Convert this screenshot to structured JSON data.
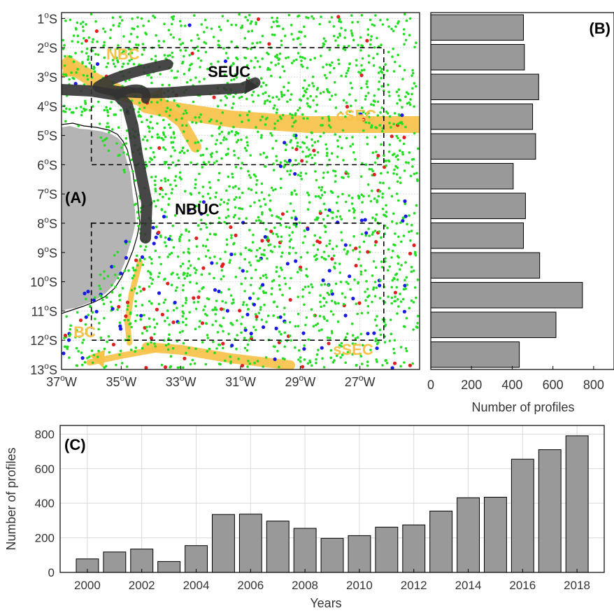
{
  "colors": {
    "land": "#b4b4b4",
    "bar": "#999999",
    "current_surface": "#f8c24a",
    "current_subsurface": "#333333",
    "points_green": "#22dd22",
    "points_red": "#e02020",
    "points_blue": "#1a1ae6",
    "grid": "#d9d9d9"
  },
  "chart_data": [
    {
      "panel_label": "(A)",
      "type": "scatter",
      "xlim": [
        -37,
        -25
      ],
      "ylim": [
        -13,
        -0.8
      ],
      "x_ticks": [
        {
          "v": -37,
          "label": "37",
          "sup": "o",
          "suf": "W"
        },
        {
          "v": -35,
          "label": "35",
          "sup": "o",
          "suf": "W"
        },
        {
          "v": -33,
          "label": "33",
          "sup": "o",
          "suf": "W"
        },
        {
          "v": -31,
          "label": "31",
          "sup": "o",
          "suf": "W"
        },
        {
          "v": -29,
          "label": "29",
          "sup": "o",
          "suf": "W"
        },
        {
          "v": -27,
          "label": "27",
          "sup": "o",
          "suf": "W"
        }
      ],
      "y_ticks": [
        {
          "v": -1,
          "label": "1",
          "sup": "o",
          "suf": "S"
        },
        {
          "v": -2,
          "label": "2",
          "sup": "o",
          "suf": "S"
        },
        {
          "v": -3,
          "label": "3",
          "sup": "o",
          "suf": "S"
        },
        {
          "v": -4,
          "label": "4",
          "sup": "o",
          "suf": "S"
        },
        {
          "v": -5,
          "label": "5",
          "sup": "o",
          "suf": "S"
        },
        {
          "v": -6,
          "label": "6",
          "sup": "o",
          "suf": "S"
        },
        {
          "v": -7,
          "label": "7",
          "sup": "o",
          "suf": "S"
        },
        {
          "v": -8,
          "label": "8",
          "sup": "o",
          "suf": "S"
        },
        {
          "v": -9,
          "label": "9",
          "sup": "o",
          "suf": "S"
        },
        {
          "v": -10,
          "label": "10",
          "sup": "o",
          "suf": "S"
        },
        {
          "v": -11,
          "label": "11",
          "sup": "o",
          "suf": "S"
        },
        {
          "v": -12,
          "label": "12",
          "sup": "o",
          "suf": "S"
        },
        {
          "v": -13,
          "label": "13",
          "sup": "o",
          "suf": "S"
        }
      ],
      "grid": true,
      "regions": [
        {
          "lon": [
            -36,
            -26.2
          ],
          "lat": [
            -6,
            -2
          ]
        },
        {
          "lon": [
            -36,
            -26.2
          ],
          "lat": [
            -12,
            -8
          ]
        }
      ],
      "currents": [
        {
          "name": "NBC",
          "kind": "surface",
          "label_at": [
            -35.5,
            -2.4
          ]
        },
        {
          "name": "SEUC",
          "kind": "subsurface",
          "label_at": [
            -32.1,
            -3.0
          ]
        },
        {
          "name": "cSEC",
          "kind": "surface",
          "label_at": [
            -27.8,
            -4.5
          ]
        },
        {
          "name": "NBUC",
          "kind": "subsurface",
          "label_at": [
            -33.2,
            -7.7
          ]
        },
        {
          "name": "BC",
          "kind": "surface",
          "label_at": [
            -36.6,
            -11.9
          ]
        },
        {
          "name": "sSEC",
          "kind": "surface",
          "label_at": [
            -27.9,
            -12.5
          ]
        }
      ]
    },
    {
      "panel_label": "(B)",
      "type": "bar",
      "orientation": "horizontal",
      "xlabel": "Number of profiles",
      "xlim": [
        0,
        900
      ],
      "x_ticks": [
        "0",
        "200",
        "400",
        "600",
        "800"
      ],
      "categories": [
        "1",
        "2",
        "3",
        "4",
        "5",
        "6",
        "7",
        "8",
        "9",
        "10",
        "11",
        "12"
      ],
      "values": [
        455,
        460,
        530,
        500,
        515,
        405,
        465,
        455,
        535,
        745,
        615,
        435
      ]
    },
    {
      "panel_label": "(C)",
      "type": "bar",
      "xlabel": "Years",
      "ylabel": "Number of profiles",
      "ylim": [
        0,
        850
      ],
      "y_ticks": [
        "0",
        "200",
        "400",
        "600",
        "800"
      ],
      "x_tick_labels": [
        "2000",
        "2002",
        "2004",
        "2006",
        "2008",
        "2010",
        "2012",
        "2014",
        "2016",
        "2018"
      ],
      "grid": true,
      "categories": [
        "2000",
        "2001",
        "2002",
        "2003",
        "2004",
        "2005",
        "2006",
        "2007",
        "2008",
        "2009",
        "2010",
        "2011",
        "2012",
        "2013",
        "2014",
        "2015",
        "2016",
        "2017",
        "2018"
      ],
      "values": [
        78,
        118,
        135,
        63,
        155,
        335,
        337,
        297,
        255,
        197,
        213,
        262,
        275,
        355,
        432,
        435,
        655,
        710,
        790
      ]
    }
  ]
}
